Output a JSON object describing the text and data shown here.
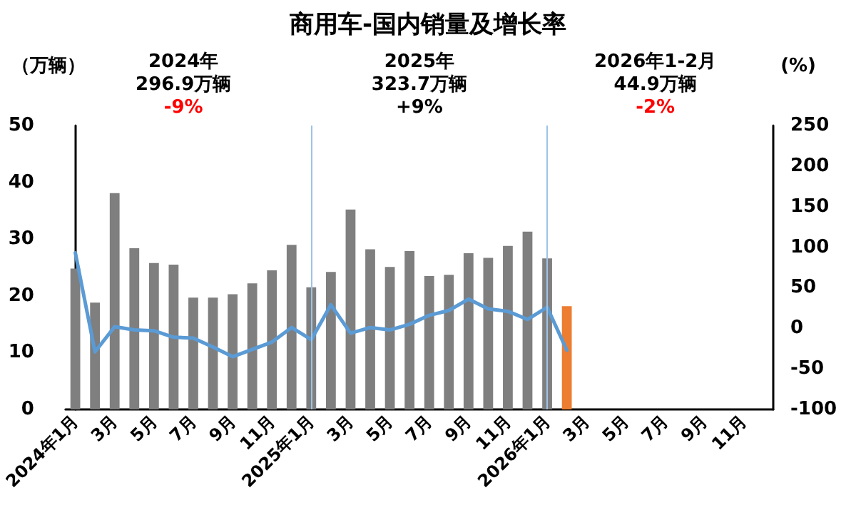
{
  "chart_data": {
    "type": "bar",
    "title": "商用车-国内销量及增长率",
    "ylabel": "（万辆）",
    "y2label": "(%)",
    "categories": [
      "2024年1月",
      null,
      "3月",
      null,
      "5月",
      null,
      "7月",
      null,
      "9月",
      null,
      "11月",
      null,
      "2025年1月",
      null,
      "3月",
      null,
      "5月",
      null,
      "7月",
      null,
      "9月",
      null,
      "11月",
      null,
      "2026年1月",
      null,
      "3月",
      null,
      "5月",
      null,
      "7月",
      null,
      "9月",
      null,
      "11月",
      null
    ],
    "series": [
      {
        "color": "#7f7f7f",
        "colors": [
          "#7f7f7f",
          "#7f7f7f",
          "#7f7f7f",
          "#7f7f7f",
          "#7f7f7f",
          "#7f7f7f",
          "#7f7f7f",
          "#7f7f7f",
          "#7f7f7f",
          "#7f7f7f",
          "#7f7f7f",
          "#7f7f7f",
          "#7f7f7f",
          "#7f7f7f",
          "#7f7f7f",
          "#7f7f7f",
          "#7f7f7f",
          "#7f7f7f",
          "#7f7f7f",
          "#7f7f7f",
          "#7f7f7f",
          "#7f7f7f",
          "#7f7f7f",
          "#7f7f7f",
          "#7f7f7f",
          "#ed7d31",
          null,
          null,
          null,
          null,
          null,
          null,
          null,
          null,
          null,
          null
        ],
        "values": [
          24.8,
          18.8,
          38.1,
          28.4,
          25.8,
          25.5,
          19.7,
          19.7,
          20.3,
          22.2,
          24.5,
          29.0,
          21.5,
          24.2,
          35.2,
          28.2,
          25.1,
          27.9,
          23.5,
          23.7,
          27.5,
          26.7,
          28.8,
          31.3,
          26.6,
          18.2,
          null,
          null,
          null,
          null,
          null,
          null,
          null,
          null,
          null,
          null
        ]
      },
      {
        "type": "line",
        "axis": "y2",
        "color": "#5b9bd5",
        "values": [
          93,
          -29,
          2,
          -2,
          -3,
          -11,
          -12,
          -23,
          -35,
          -26,
          -17,
          1,
          -14,
          29,
          -6,
          1,
          -2,
          5,
          16,
          22,
          36,
          24,
          21,
          11,
          26,
          -27,
          null,
          null,
          null,
          null,
          null,
          null,
          null,
          null,
          null,
          null
        ]
      }
    ],
    "ylim": [
      0,
      50
    ],
    "yticks": [
      0,
      10,
      20,
      30,
      40,
      50
    ],
    "y2lim": [
      -100,
      250
    ],
    "y2ticks": [
      -100,
      -50,
      0,
      50,
      100,
      150,
      200,
      250
    ],
    "ref_lines": [
      {
        "axis": "x",
        "value": "2025年1月",
        "color": "#9dc3e6"
      },
      {
        "axis": "x",
        "value": "2026年1月",
        "color": "#9dc3e6"
      }
    ],
    "annotations": [
      "2024年\n296.9万辆\n-9%",
      "2025年\n323.7万辆\n+9%",
      "2026年1-2月\n44.9万辆\n-2%"
    ],
    "grid": false,
    "marker": "none",
    "line_style": "solid"
  }
}
